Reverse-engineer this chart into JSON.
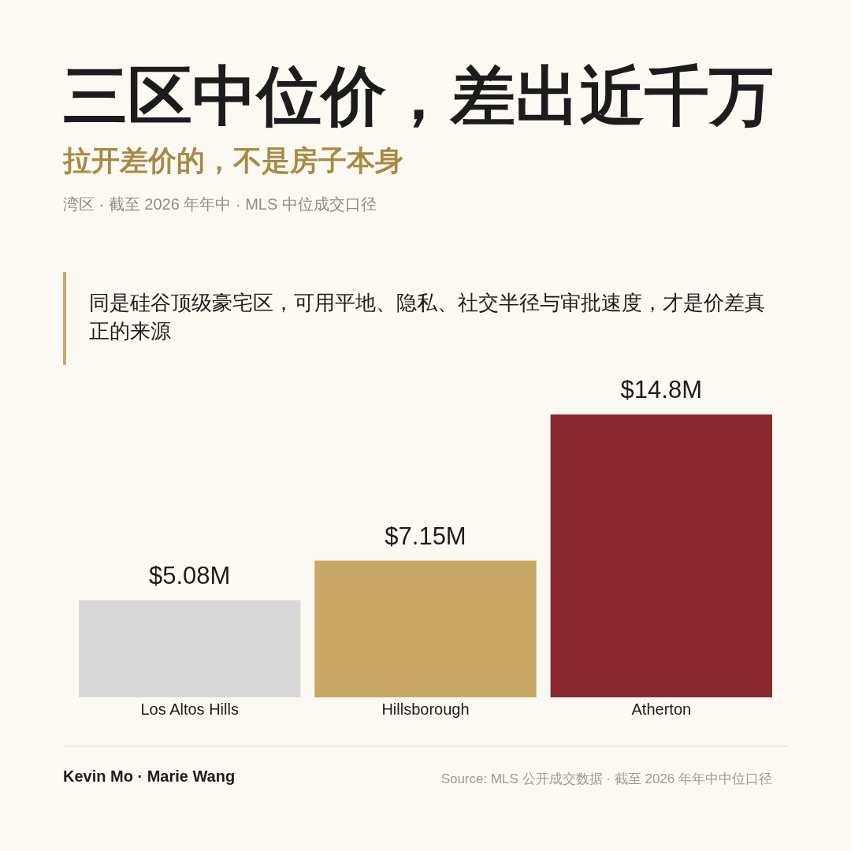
{
  "chart_data": {
    "type": "bar",
    "title": "三区中位价，差出近千万",
    "subtitle": "拉开差价的，不是房子本身",
    "categories": [
      "Los Altos Hills",
      "Hillsborough",
      "Atherton"
    ],
    "values": [
      5.08,
      7.15,
      14.8
    ],
    "colors": [
      "#d8d8d8",
      "#c9a866",
      "#88282c"
    ],
    "value_labels": [
      "$5.08M",
      "$7.15M",
      "$14.8M"
    ],
    "annotations": [
      "湾区 · 截至 2026 年年中 · MLS 中位成交口径",
      "同是硅谷顶级豪宅区，可用平地、隐私、社交半径与审批速度，才是价差真正的来源",
      "Kevin Mo · Marie Wang",
      "Source: MLS 公开成交数据 · 截至 2026 年年中中位口径"
    ]
  }
}
